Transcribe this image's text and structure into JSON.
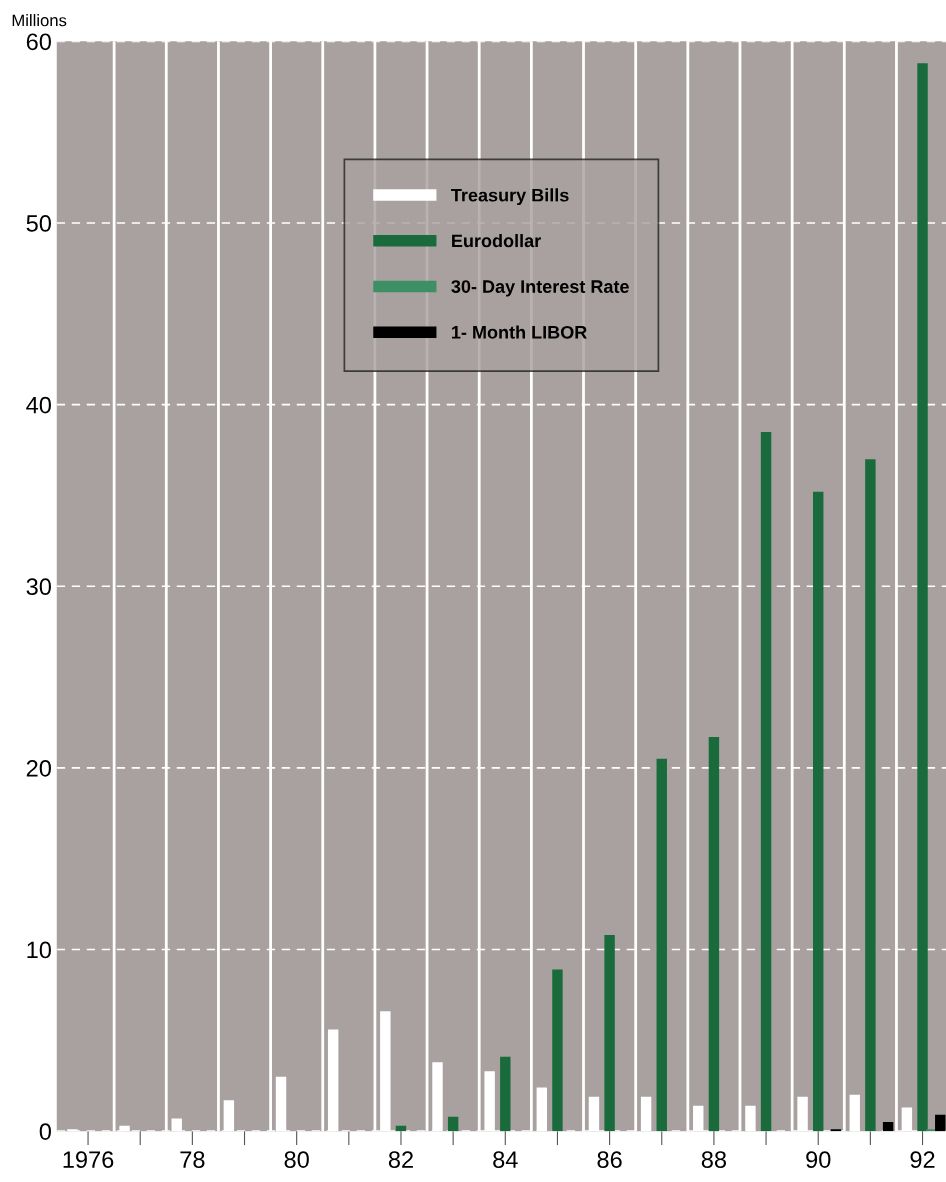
{
  "chart_data": {
    "type": "bar",
    "ylabel": "Millions",
    "categories": [
      "1976",
      null,
      "78",
      null,
      "80",
      null,
      "82",
      null,
      "84",
      null,
      "86",
      null,
      "88",
      null,
      "90",
      null,
      "92"
    ],
    "series": [
      {
        "name": "Treasury Bills",
        "color": "#ffffff",
        "values": [
          0.1,
          0.3,
          0.7,
          1.7,
          3.0,
          5.6,
          6.6,
          3.8,
          3.3,
          2.4,
          1.9,
          1.9,
          1.4,
          1.4,
          1.9,
          2.0,
          1.3
        ]
      },
      {
        "name": "Eurodollar",
        "color": "#1a6b3c",
        "values": [
          null,
          null,
          null,
          null,
          null,
          null,
          0.3,
          0.8,
          4.1,
          8.9,
          10.8,
          20.5,
          21.7,
          38.5,
          35.2,
          37.0,
          58.8
        ]
      },
      {
        "name": "30- Day Interest Rate",
        "color": "#3e8f64",
        "values": [
          null,
          null,
          null,
          null,
          null,
          null,
          null,
          null,
          null,
          null,
          null,
          null,
          null,
          null,
          null,
          null,
          0.1
        ]
      },
      {
        "name": "1- Month LIBOR",
        "color": "#000000",
        "values": [
          null,
          null,
          null,
          null,
          null,
          null,
          null,
          null,
          null,
          null,
          null,
          null,
          null,
          null,
          0.1,
          0.5,
          0.9
        ]
      }
    ],
    "ylim": [
      0,
      60
    ],
    "yticks": [
      0,
      10,
      20,
      30,
      40,
      50,
      60
    ],
    "grid": true,
    "legend": "top"
  }
}
